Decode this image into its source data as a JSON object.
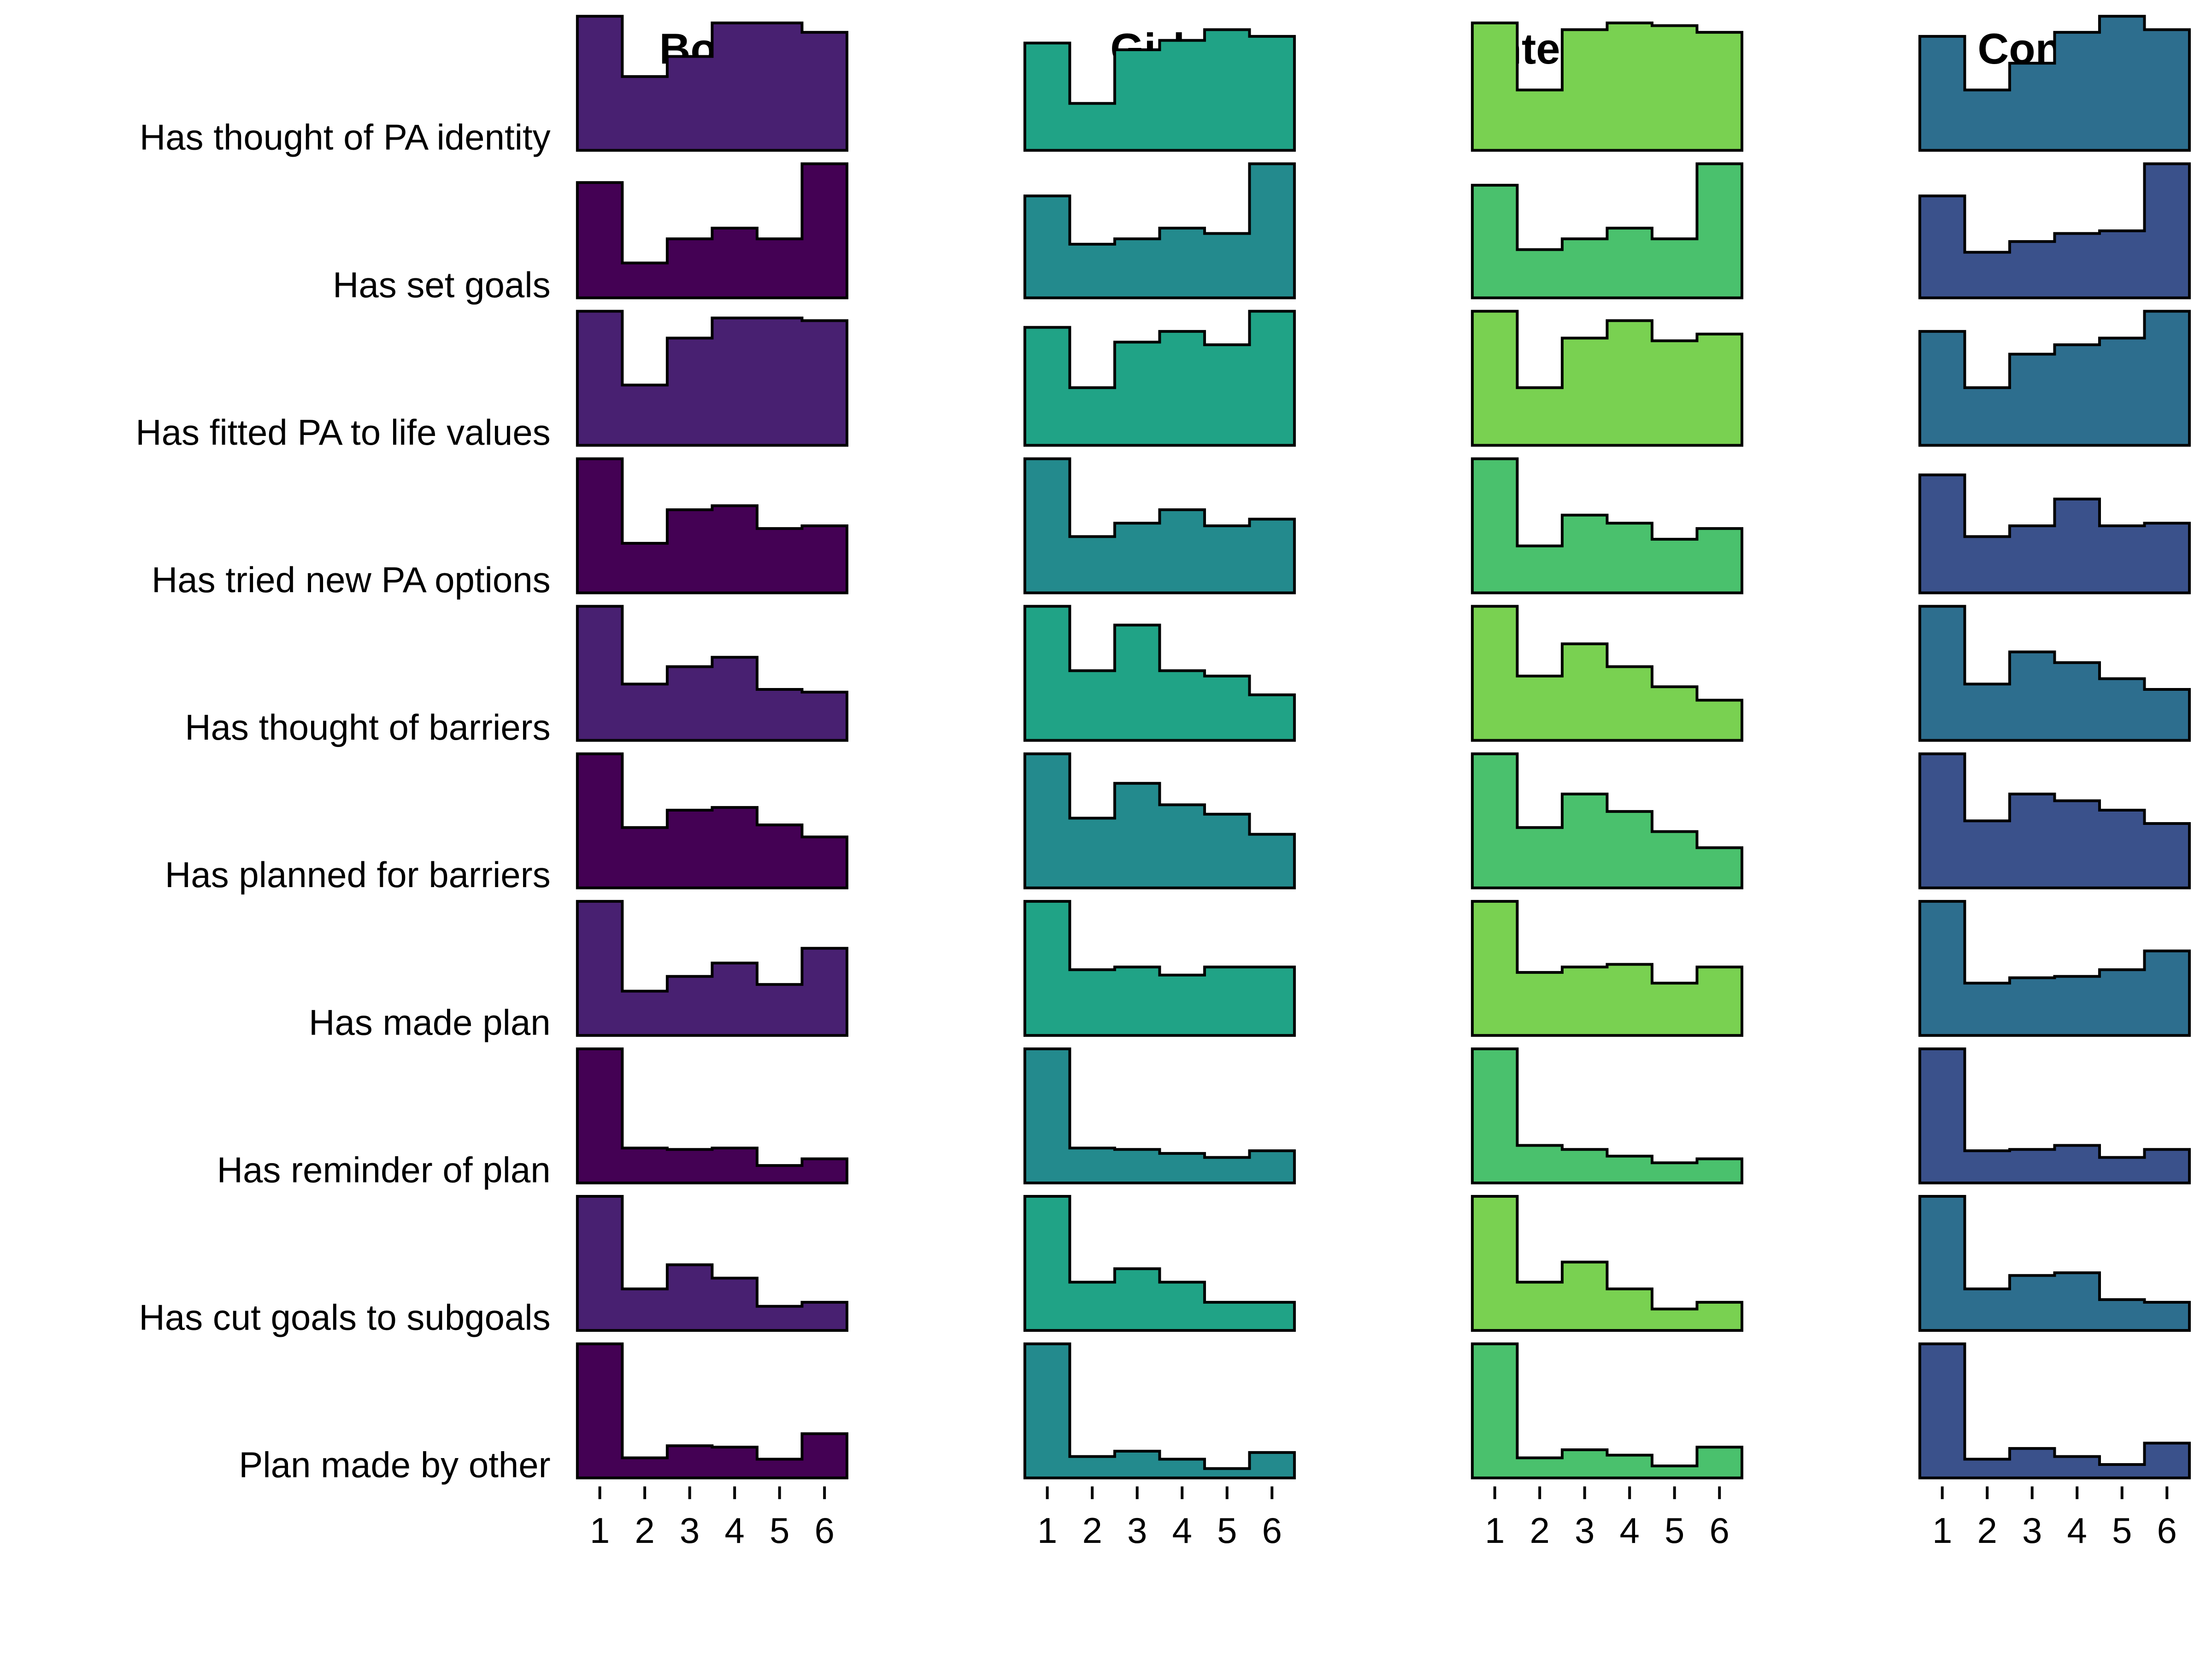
{
  "chart_data": {
    "type": "histogram-grid",
    "x_categories": [
      "1",
      "2",
      "3",
      "4",
      "5",
      "6"
    ],
    "columns": [
      {
        "title": "Boys",
        "colors": [
          "#482071",
          "#440154"
        ]
      },
      {
        "title": "Girls",
        "colors": [
          "#20A386",
          "#238A8D"
        ]
      },
      {
        "title": "Intervention",
        "colors": [
          "#79D151",
          "#4AC16D"
        ]
      },
      {
        "title": "Control",
        "colors": [
          "#2D6E8E",
          "#3A518B"
        ]
      }
    ],
    "rows": [
      {
        "label": "Has thought of PA identity",
        "values": [
          [
            1.0,
            0.55,
            0.7,
            0.95,
            0.95,
            0.88
          ],
          [
            0.8,
            0.35,
            0.75,
            0.82,
            0.9,
            0.85
          ],
          [
            0.95,
            0.45,
            0.9,
            0.95,
            0.93,
            0.88
          ],
          [
            0.85,
            0.45,
            0.65,
            0.88,
            1.0,
            0.9
          ]
        ]
      },
      {
        "label": "Has set goals",
        "values": [
          [
            0.86,
            0.26,
            0.44,
            0.52,
            0.44,
            1.0
          ],
          [
            0.76,
            0.4,
            0.44,
            0.52,
            0.48,
            1.0
          ],
          [
            0.84,
            0.36,
            0.44,
            0.52,
            0.44,
            1.0
          ],
          [
            0.76,
            0.34,
            0.42,
            0.48,
            0.5,
            1.0
          ]
        ]
      },
      {
        "label": "Has fitted PA to life values",
        "values": [
          [
            1.0,
            0.45,
            0.8,
            0.95,
            0.95,
            0.93
          ],
          [
            0.88,
            0.43,
            0.77,
            0.85,
            0.75,
            1.0
          ],
          [
            1.0,
            0.43,
            0.8,
            0.93,
            0.78,
            0.83
          ],
          [
            0.85,
            0.43,
            0.68,
            0.75,
            0.8,
            1.0
          ]
        ]
      },
      {
        "label": "Has tried new PA options",
        "values": [
          [
            1.0,
            0.37,
            0.62,
            0.65,
            0.48,
            0.5
          ],
          [
            1.0,
            0.42,
            0.52,
            0.62,
            0.5,
            0.55
          ],
          [
            1.0,
            0.35,
            0.58,
            0.52,
            0.4,
            0.48
          ],
          [
            0.88,
            0.42,
            0.5,
            0.7,
            0.5,
            0.52
          ]
        ]
      },
      {
        "label": "Has thought of barriers",
        "values": [
          [
            1.0,
            0.42,
            0.55,
            0.62,
            0.38,
            0.36
          ],
          [
            1.0,
            0.52,
            0.86,
            0.52,
            0.48,
            0.34
          ],
          [
            1.0,
            0.48,
            0.72,
            0.55,
            0.4,
            0.3
          ],
          [
            1.0,
            0.42,
            0.66,
            0.58,
            0.46,
            0.38
          ]
        ]
      },
      {
        "label": "Has planned for barriers",
        "values": [
          [
            1.0,
            0.45,
            0.58,
            0.6,
            0.47,
            0.38
          ],
          [
            1.0,
            0.52,
            0.78,
            0.62,
            0.55,
            0.4
          ],
          [
            1.0,
            0.45,
            0.7,
            0.57,
            0.42,
            0.3
          ],
          [
            1.0,
            0.5,
            0.7,
            0.65,
            0.58,
            0.48
          ]
        ]
      },
      {
        "label": "Has made plan",
        "values": [
          [
            1.0,
            0.33,
            0.44,
            0.54,
            0.38,
            0.65
          ],
          [
            1.0,
            0.49,
            0.51,
            0.45,
            0.51,
            0.51
          ],
          [
            1.0,
            0.47,
            0.51,
            0.53,
            0.39,
            0.51
          ],
          [
            1.0,
            0.39,
            0.43,
            0.44,
            0.49,
            0.63
          ]
        ]
      },
      {
        "label": "Has reminder of plan",
        "values": [
          [
            1.0,
            0.26,
            0.25,
            0.26,
            0.13,
            0.18
          ],
          [
            1.0,
            0.26,
            0.25,
            0.22,
            0.19,
            0.24
          ],
          [
            1.0,
            0.28,
            0.25,
            0.2,
            0.15,
            0.18
          ],
          [
            1.0,
            0.24,
            0.25,
            0.28,
            0.19,
            0.25
          ]
        ]
      },
      {
        "label": "Has cut goals to subgoals",
        "values": [
          [
            1.0,
            0.31,
            0.49,
            0.39,
            0.18,
            0.21
          ],
          [
            1.0,
            0.36,
            0.46,
            0.36,
            0.21,
            0.21
          ],
          [
            1.0,
            0.36,
            0.51,
            0.31,
            0.16,
            0.21
          ],
          [
            1.0,
            0.31,
            0.41,
            0.43,
            0.23,
            0.21
          ]
        ]
      },
      {
        "label": "Plan made by other",
        "values": [
          [
            1.0,
            0.15,
            0.24,
            0.23,
            0.14,
            0.33
          ],
          [
            1.0,
            0.16,
            0.2,
            0.14,
            0.07,
            0.19
          ],
          [
            1.0,
            0.15,
            0.21,
            0.17,
            0.09,
            0.23
          ],
          [
            1.0,
            0.14,
            0.22,
            0.16,
            0.1,
            0.26
          ]
        ]
      }
    ]
  }
}
